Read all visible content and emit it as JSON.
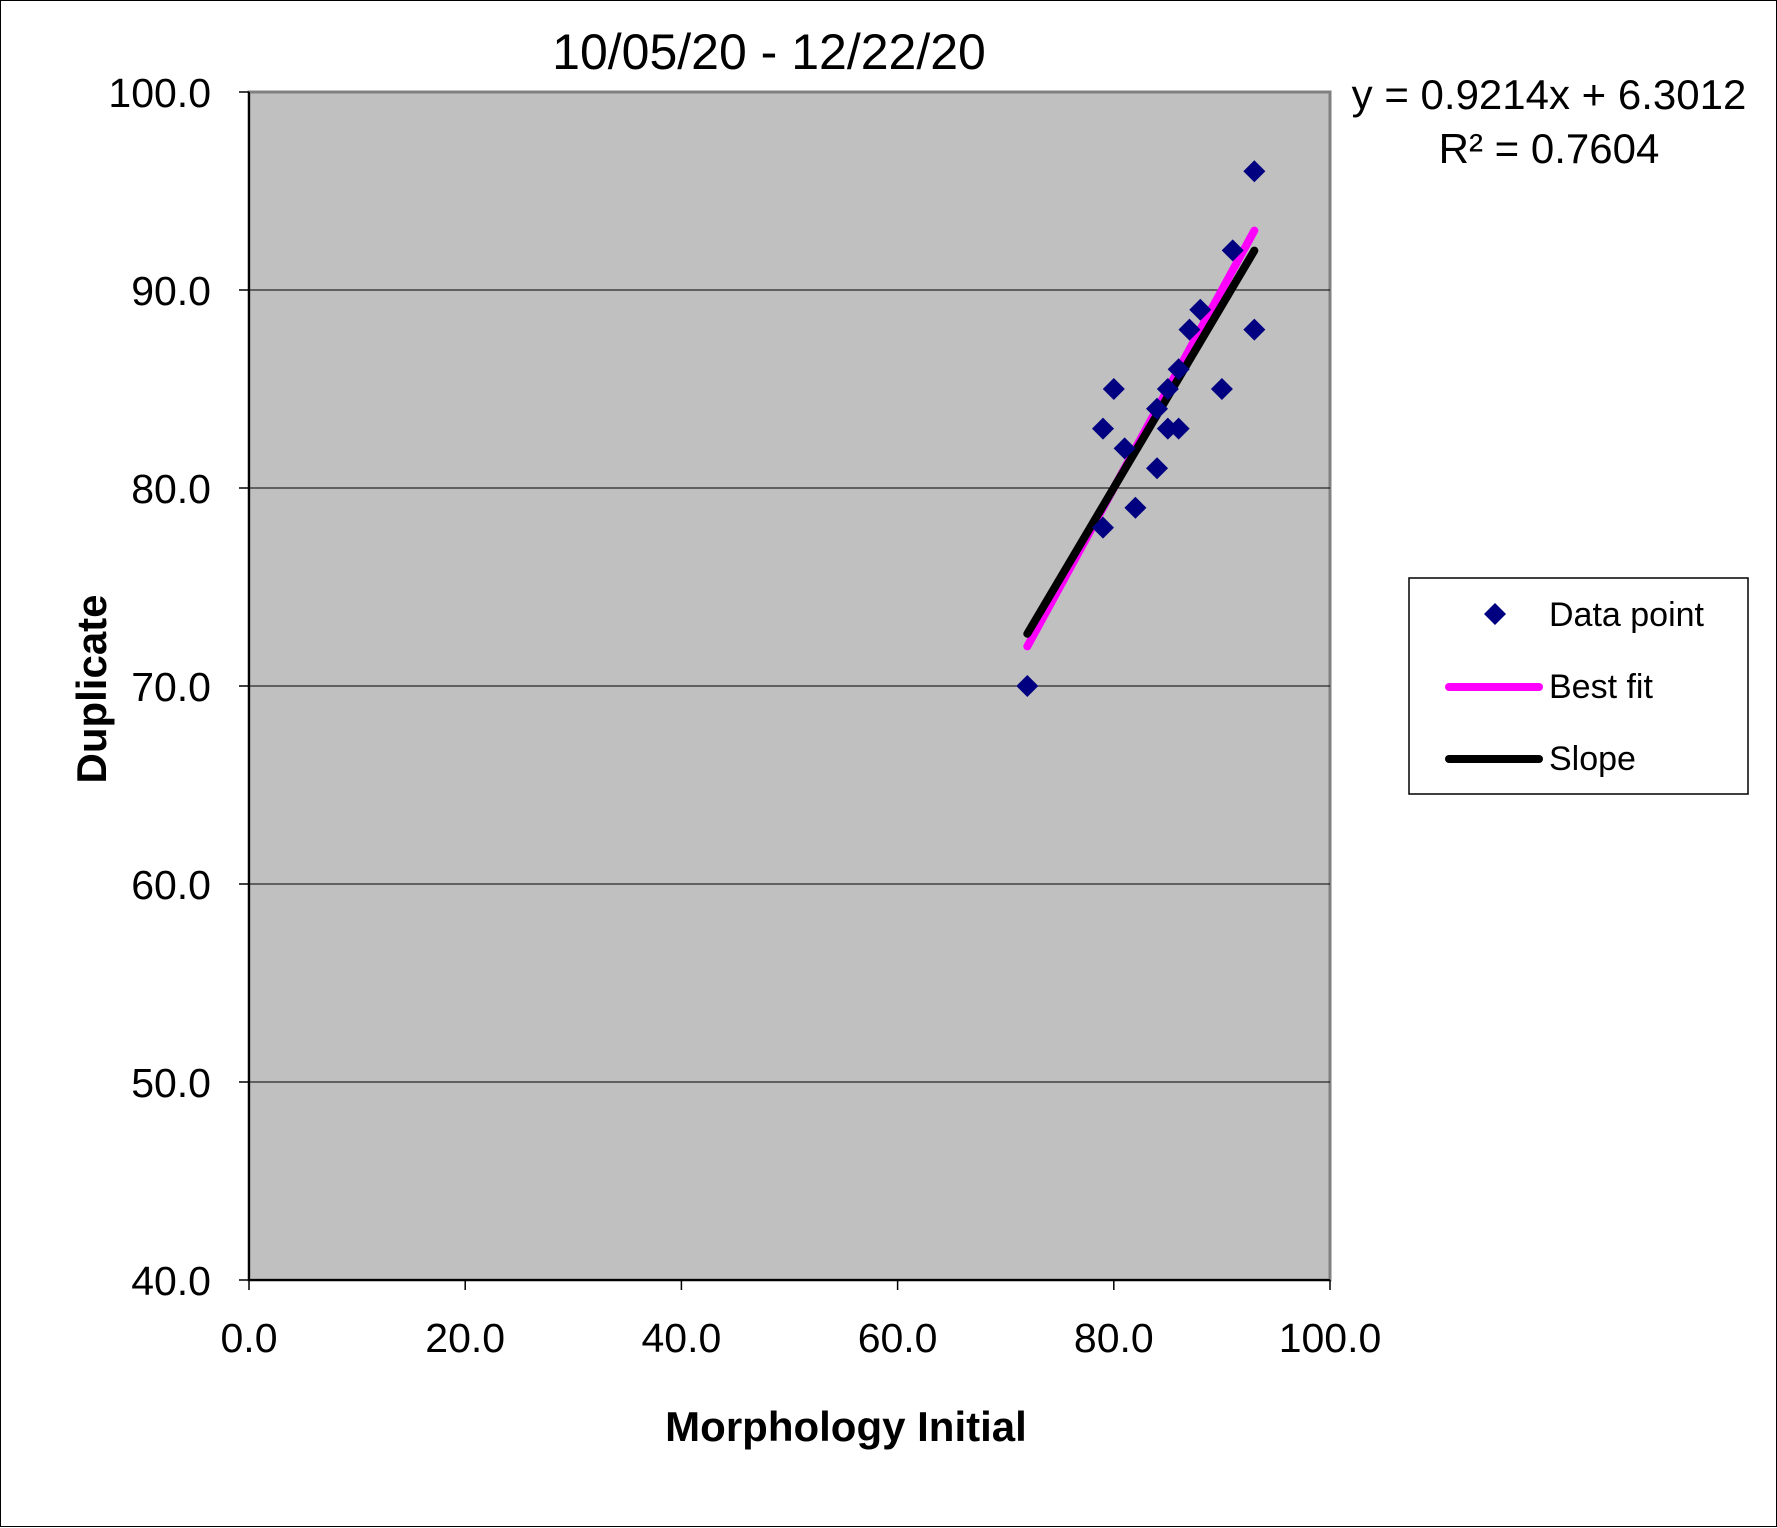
{
  "chart_data": {
    "type": "scatter",
    "title": "10/05/20 - 12/22/20",
    "xlabel": "Morphology Initial",
    "ylabel": "Duplicate",
    "xlim": [
      0,
      100
    ],
    "ylim": [
      40,
      100
    ],
    "xticks": [
      "0.0",
      "20.0",
      "40.0",
      "60.0",
      "80.0",
      "100.0"
    ],
    "yticks": [
      "40.0",
      "50.0",
      "60.0",
      "70.0",
      "80.0",
      "90.0",
      "100.0"
    ],
    "grid": "horizontal",
    "legend_position": "right",
    "equation": "y = 0.9214x + 6.3012",
    "r_squared": "R² = 0.7604",
    "colors": {
      "plot_background": "#c0c0c0",
      "point": "#000080",
      "best_fit": "#ff00ff",
      "slope": "#000000"
    },
    "series": [
      {
        "name": "Data point",
        "kind": "points",
        "points": [
          {
            "x": 72,
            "y": 70
          },
          {
            "x": 79,
            "y": 78
          },
          {
            "x": 79,
            "y": 83
          },
          {
            "x": 80,
            "y": 85
          },
          {
            "x": 81,
            "y": 82
          },
          {
            "x": 82,
            "y": 79
          },
          {
            "x": 84,
            "y": 81
          },
          {
            "x": 84,
            "y": 84
          },
          {
            "x": 85,
            "y": 83
          },
          {
            "x": 85,
            "y": 85
          },
          {
            "x": 86,
            "y": 86
          },
          {
            "x": 86,
            "y": 83
          },
          {
            "x": 87,
            "y": 88
          },
          {
            "x": 88,
            "y": 89
          },
          {
            "x": 90,
            "y": 85
          },
          {
            "x": 91,
            "y": 92
          },
          {
            "x": 93,
            "y": 96
          },
          {
            "x": 93,
            "y": 88
          }
        ]
      },
      {
        "name": "Best fit",
        "kind": "line",
        "points": [
          {
            "x": 72,
            "y": 72
          },
          {
            "x": 93,
            "y": 93
          }
        ]
      },
      {
        "name": "Slope",
        "kind": "line",
        "points": [
          {
            "x": 72,
            "y": 72.64
          },
          {
            "x": 93,
            "y": 91.99
          }
        ]
      }
    ]
  }
}
